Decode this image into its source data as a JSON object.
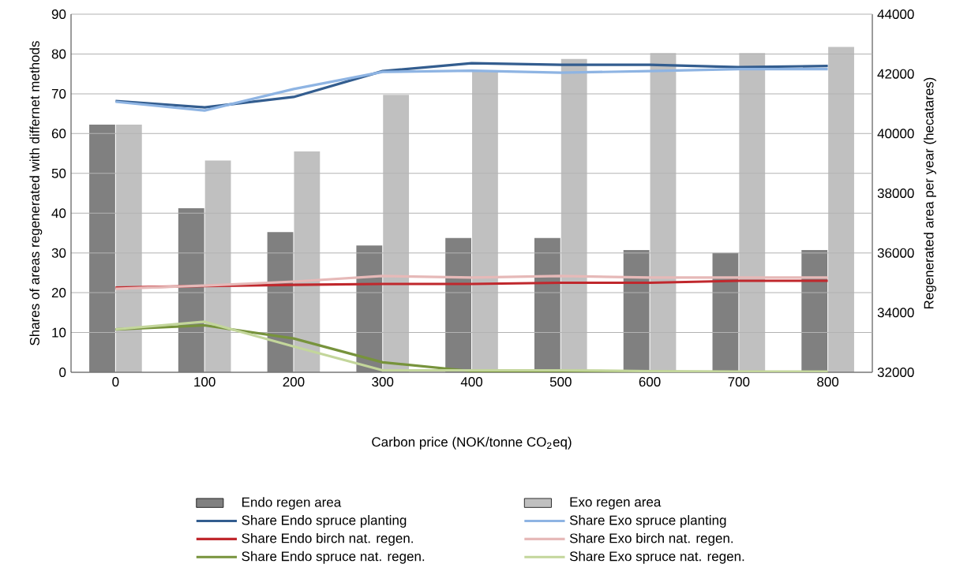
{
  "chart_data": {
    "type": "line",
    "xlabel": "Carbon price (NOK/tonne CO$_{2}$eq)",
    "ylabel": "Shares of areas regenerated with differnet methods",
    "y2label": "Regenerated area per year (hecatares)",
    "categories": [
      "0",
      "100",
      "200",
      "300",
      "400",
      "500",
      "600",
      "700",
      "800"
    ],
    "ylim": [
      0,
      90
    ],
    "yticks": [
      0,
      10,
      20,
      30,
      40,
      50,
      60,
      70,
      80,
      90
    ],
    "y2lim": [
      32000,
      44000
    ],
    "y2ticks": [
      32000,
      34000,
      36000,
      38000,
      40000,
      42000,
      44000
    ],
    "grid": "y",
    "legend": "bottom",
    "line_style": "solid",
    "marker": "none",
    "series": [
      {
        "name": "Endo regen area",
        "type": "bar",
        "axis": "y2",
        "color": "#808080",
        "values": [
          40300,
          37500,
          36700,
          36250,
          36500,
          36500,
          36100,
          36000,
          36100
        ]
      },
      {
        "name": "Exo regen area",
        "type": "bar",
        "axis": "y2",
        "color": "#c0c0c0",
        "values": [
          40300,
          39100,
          39400,
          41300,
          42100,
          42500,
          42700,
          42700,
          42900
        ]
      },
      {
        "name": "Share Endo spruce planting",
        "color": "#335d8f",
        "values": [
          68.2,
          66.6,
          69.2,
          75.7,
          77.7,
          77.3,
          77.3,
          76.7,
          77
        ]
      },
      {
        "name": "Share Exo spruce planting",
        "color": "#8eb4e3",
        "values": [
          68,
          65.8,
          71.2,
          75.5,
          75.8,
          75.3,
          75.7,
          76.2,
          76.2
        ]
      },
      {
        "name": "Share Endo birch nat. regen.",
        "color": "#c0282d",
        "values": [
          21.3,
          21.7,
          22,
          22.2,
          22.2,
          22.5,
          22.5,
          23,
          23
        ]
      },
      {
        "name": "Share Exo birch nat. regen.",
        "color": "#e6b9b8",
        "values": [
          21,
          21.8,
          22.8,
          24.2,
          23.8,
          24.2,
          23.8,
          23.8,
          23.8
        ]
      },
      {
        "name": "Share Endo spruce nat. regen.",
        "color": "#77933c",
        "values": [
          10.8,
          11.8,
          8.5,
          2.5,
          0.3,
          0,
          0,
          0,
          0
        ]
      },
      {
        "name": "Share Exo spruce nat. regen.",
        "color": "#c3d69b",
        "values": [
          10.8,
          12.7,
          6.5,
          0.5,
          0.5,
          0.5,
          0.3,
          0.2,
          0.2
        ]
      }
    ]
  }
}
